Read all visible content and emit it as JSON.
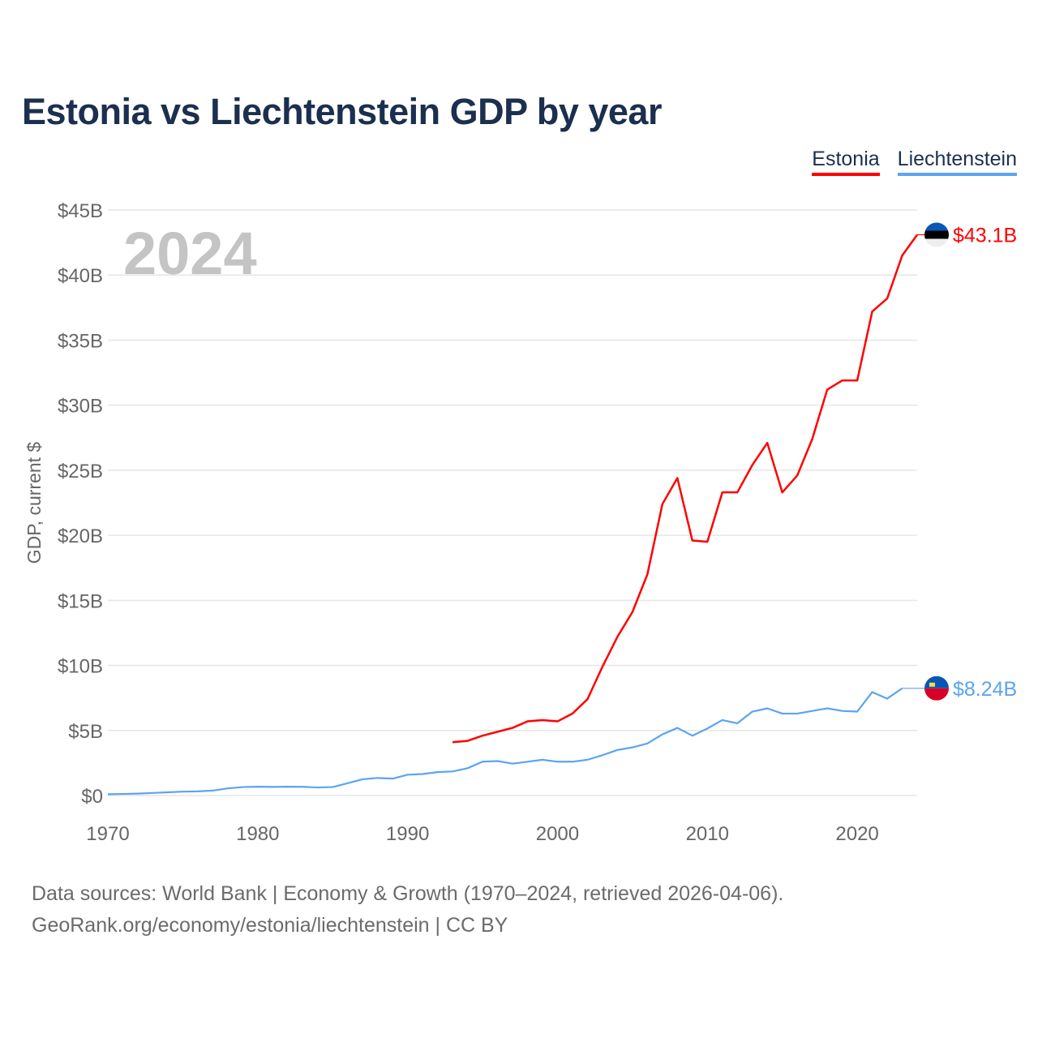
{
  "title": "Estonia vs Liechtenstein GDP by year",
  "legend": {
    "estonia": "Estonia",
    "liechtenstein": "Liechtenstein"
  },
  "year_overlay": "2024",
  "footer": {
    "line1": "Data sources: World Bank | Economy & Growth (1970–2024, retrieved 2026-04-06).",
    "line2": "GeoRank.org/economy/estonia/liechtenstein | CC BY"
  },
  "chart_data": {
    "type": "line",
    "title": "Estonia vs Liechtenstein GDP by year",
    "ylabel": "GDP, current $",
    "xlabel": "",
    "xlim": [
      1970,
      2024
    ],
    "ylim": [
      0,
      45
    ],
    "xticks": [
      1970,
      1980,
      1990,
      2000,
      2010,
      2020
    ],
    "xtick_labels": [
      "1970",
      "1980",
      "1990",
      "2000",
      "2010",
      "2020"
    ],
    "yticks": [
      0,
      5,
      10,
      15,
      20,
      25,
      30,
      35,
      40,
      45
    ],
    "ytick_labels": [
      "$0",
      "$5B",
      "$10B",
      "$15B",
      "$20B",
      "$25B",
      "$30B",
      "$35B",
      "$40B",
      "$45B"
    ],
    "grid": true,
    "legend_position": "top-right",
    "series": [
      {
        "name": "Estonia",
        "color": "#ff0000",
        "end_label": "$43.1B",
        "x": [
          1993,
          1994,
          1995,
          1996,
          1997,
          1998,
          1999,
          2000,
          2001,
          2002,
          2003,
          2004,
          2005,
          2006,
          2007,
          2008,
          2009,
          2010,
          2011,
          2012,
          2013,
          2014,
          2015,
          2016,
          2017,
          2018,
          2019,
          2020,
          2021,
          2022,
          2023,
          2024
        ],
        "y": [
          4.1,
          4.2,
          4.6,
          4.9,
          5.2,
          5.7,
          5.8,
          5.7,
          6.3,
          7.4,
          9.9,
          12.2,
          14.1,
          17.0,
          22.4,
          24.4,
          19.6,
          19.5,
          23.3,
          23.3,
          25.4,
          27.1,
          23.3,
          24.6,
          27.4,
          31.2,
          31.9,
          31.9,
          37.2,
          38.2,
          41.5,
          43.1
        ]
      },
      {
        "name": "Liechtenstein",
        "color": "#5ba4f0",
        "end_label": "$8.24B",
        "x": [
          1970,
          1971,
          1972,
          1973,
          1974,
          1975,
          1976,
          1977,
          1978,
          1979,
          1980,
          1981,
          1982,
          1983,
          1984,
          1985,
          1986,
          1987,
          1988,
          1989,
          1990,
          1991,
          1992,
          1993,
          1994,
          1995,
          1996,
          1997,
          1998,
          1999,
          2000,
          2001,
          2002,
          2003,
          2004,
          2005,
          2006,
          2007,
          2008,
          2009,
          2010,
          2011,
          2012,
          2013,
          2014,
          2015,
          2016,
          2017,
          2018,
          2019,
          2020,
          2021,
          2022,
          2023
        ],
        "y": [
          0.1,
          0.12,
          0.15,
          0.2,
          0.25,
          0.3,
          0.32,
          0.38,
          0.55,
          0.65,
          0.68,
          0.66,
          0.68,
          0.67,
          0.62,
          0.65,
          0.95,
          1.25,
          1.35,
          1.3,
          1.6,
          1.65,
          1.8,
          1.85,
          2.1,
          2.6,
          2.65,
          2.45,
          2.6,
          2.75,
          2.6,
          2.6,
          2.75,
          3.1,
          3.5,
          3.7,
          4.0,
          4.7,
          5.2,
          4.6,
          5.15,
          5.8,
          5.55,
          6.45,
          6.7,
          6.3,
          6.3,
          6.5,
          6.7,
          6.5,
          6.45,
          7.95,
          7.45,
          8.24
        ]
      }
    ]
  }
}
